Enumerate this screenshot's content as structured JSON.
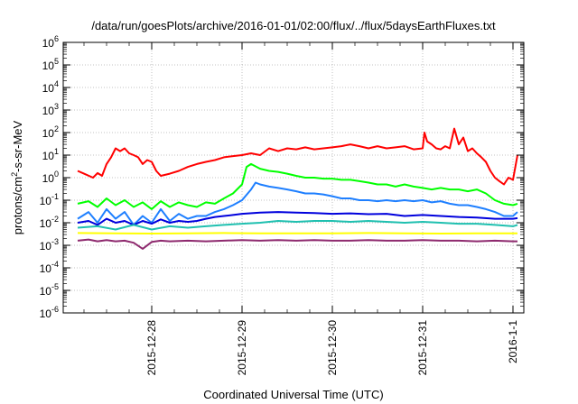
{
  "chart_data": {
    "type": "line",
    "title": "/data/run/goesPlots/archive/2016-01-01/02:00/flux/../flux/5daysEarthFluxes.txt",
    "xlabel": "Coordinated Universal Time (UTC)",
    "ylabel": {
      "base": "protons/cm",
      "sup": "2",
      "rest": "-s-sr-MeV"
    },
    "yscale": "log",
    "ylim": [
      1e-06,
      1000000.0
    ],
    "xlim_days": [
      -2.8,
      1.05
    ],
    "grid": true,
    "legend": "none",
    "x_ticks": [
      {
        "label": "2015-12-28",
        "day": -2.0
      },
      {
        "label": "2015-12-29",
        "day": -1.0
      },
      {
        "label": "2015-12-30",
        "day": 0.0
      },
      {
        "label": "2015-12-31",
        "day": 1.0
      },
      {
        "label": "2016-1-1",
        "day": 2.0
      }
    ],
    "y_ticks": [
      {
        "exp": 6,
        "label_base": "10",
        "label_sup": "6"
      },
      {
        "exp": 5,
        "label_base": "10",
        "label_sup": "5"
      },
      {
        "exp": 4,
        "label_base": "10",
        "label_sup": "4"
      },
      {
        "exp": 3,
        "label_base": "10",
        "label_sup": "3"
      },
      {
        "exp": 2,
        "label_base": "10",
        "label_sup": "2"
      },
      {
        "exp": 1,
        "label_base": "10",
        "label_sup": "1"
      },
      {
        "exp": 0,
        "label_base": "10",
        "label_sup": "0"
      },
      {
        "exp": -1,
        "label_base": "10",
        "label_sup": "-1"
      },
      {
        "exp": -2,
        "label_base": "10",
        "label_sup": "-2"
      },
      {
        "exp": -3,
        "label_base": "10",
        "label_sup": "-3"
      },
      {
        "exp": -4,
        "label_base": "10",
        "label_sup": "-4"
      },
      {
        "exp": -5,
        "label_base": "10",
        "label_sup": "-5"
      },
      {
        "exp": -6,
        "label_base": "10",
        "label_sup": "-6"
      }
    ],
    "series": [
      {
        "color": "#ff0000",
        "x": [
          -2.82,
          -2.75,
          -2.65,
          -2.6,
          -2.55,
          -2.5,
          -2.45,
          -2.4,
          -2.35,
          -2.3,
          -2.25,
          -2.2,
          -2.15,
          -2.1,
          -2.05,
          -2.0,
          -1.95,
          -1.9,
          -1.8,
          -1.7,
          -1.6,
          -1.5,
          -1.4,
          -1.3,
          -1.2,
          -1.1,
          -1.0,
          -0.9,
          -0.8,
          -0.7,
          -0.6,
          -0.5,
          -0.4,
          -0.3,
          -0.2,
          -0.1,
          0.0,
          0.1,
          0.2,
          0.3,
          0.4,
          0.5,
          0.6,
          0.7,
          0.8,
          0.9,
          1.0,
          1.02,
          1.05,
          1.1,
          1.15,
          1.2,
          1.25,
          1.3,
          1.35,
          1.4,
          1.45,
          1.5,
          1.55,
          1.6,
          1.65,
          1.7,
          1.75,
          1.8,
          1.85,
          1.9,
          1.95,
          2.0,
          2.05
        ],
        "values": [
          2,
          1.5,
          1,
          1.6,
          1.2,
          4,
          8,
          20,
          15,
          20,
          12,
          10,
          8,
          4,
          6,
          5,
          2,
          1.2,
          1.5,
          2,
          3,
          4,
          5,
          6,
          8,
          9,
          10,
          12,
          10,
          20,
          15,
          20,
          18,
          22,
          18,
          20,
          22,
          25,
          30,
          25,
          20,
          25,
          20,
          22,
          25,
          18,
          20,
          100,
          40,
          30,
          20,
          18,
          25,
          20,
          150,
          30,
          60,
          15,
          20,
          12,
          8,
          5,
          2,
          1,
          0.7,
          0.5,
          1,
          0.8,
          10
        ]
      },
      {
        "color": "#00ff00",
        "x": [
          -2.82,
          -2.7,
          -2.6,
          -2.5,
          -2.4,
          -2.3,
          -2.2,
          -2.1,
          -2.0,
          -1.9,
          -1.8,
          -1.7,
          -1.6,
          -1.5,
          -1.4,
          -1.3,
          -1.2,
          -1.1,
          -1.0,
          -0.95,
          -0.9,
          -0.8,
          -0.7,
          -0.6,
          -0.5,
          -0.4,
          -0.3,
          -0.2,
          -0.1,
          0.0,
          0.1,
          0.2,
          0.3,
          0.4,
          0.5,
          0.6,
          0.7,
          0.8,
          0.9,
          1.0,
          1.1,
          1.2,
          1.3,
          1.4,
          1.5,
          1.6,
          1.7,
          1.8,
          1.9,
          2.0,
          2.05
        ],
        "values": [
          0.07,
          0.09,
          0.05,
          0.12,
          0.06,
          0.1,
          0.05,
          0.08,
          0.04,
          0.09,
          0.05,
          0.08,
          0.06,
          0.05,
          0.08,
          0.07,
          0.12,
          0.2,
          0.5,
          3,
          4,
          2.5,
          2,
          1.8,
          1.5,
          1.2,
          1.0,
          1.0,
          0.9,
          0.9,
          0.8,
          0.8,
          0.7,
          0.6,
          0.5,
          0.5,
          0.4,
          0.5,
          0.4,
          0.35,
          0.3,
          0.35,
          0.3,
          0.3,
          0.25,
          0.3,
          0.2,
          0.1,
          0.07,
          0.06,
          0.07
        ]
      },
      {
        "color": "#1e7fff",
        "x": [
          -2.82,
          -2.7,
          -2.6,
          -2.5,
          -2.4,
          -2.3,
          -2.2,
          -2.1,
          -2.0,
          -1.9,
          -1.8,
          -1.7,
          -1.6,
          -1.5,
          -1.4,
          -1.3,
          -1.2,
          -1.1,
          -1.0,
          -0.9,
          -0.85,
          -0.8,
          -0.7,
          -0.6,
          -0.5,
          -0.4,
          -0.3,
          -0.2,
          -0.1,
          0.0,
          0.1,
          0.2,
          0.3,
          0.4,
          0.5,
          0.6,
          0.7,
          0.8,
          0.9,
          1.0,
          1.1,
          1.2,
          1.3,
          1.4,
          1.5,
          1.6,
          1.7,
          1.8,
          1.9,
          2.0,
          2.05
        ],
        "values": [
          0.015,
          0.03,
          0.01,
          0.04,
          0.015,
          0.03,
          0.008,
          0.02,
          0.01,
          0.04,
          0.012,
          0.025,
          0.015,
          0.02,
          0.02,
          0.03,
          0.04,
          0.06,
          0.1,
          0.3,
          0.6,
          0.5,
          0.4,
          0.35,
          0.3,
          0.25,
          0.2,
          0.2,
          0.18,
          0.15,
          0.12,
          0.12,
          0.1,
          0.1,
          0.09,
          0.1,
          0.09,
          0.1,
          0.09,
          0.1,
          0.08,
          0.09,
          0.07,
          0.06,
          0.06,
          0.05,
          0.04,
          0.03,
          0.02,
          0.02,
          0.03
        ]
      },
      {
        "color": "#0000dd",
        "x": [
          -2.82,
          -2.7,
          -2.6,
          -2.5,
          -2.4,
          -2.3,
          -2.2,
          -2.1,
          -2.0,
          -1.9,
          -1.8,
          -1.7,
          -1.6,
          -1.5,
          -1.4,
          -1.3,
          -1.2,
          -1.1,
          -1.0,
          -0.8,
          -0.6,
          -0.4,
          -0.2,
          0.0,
          0.2,
          0.4,
          0.6,
          0.8,
          1.0,
          1.2,
          1.4,
          1.6,
          1.8,
          2.0,
          2.05
        ],
        "values": [
          0.01,
          0.012,
          0.008,
          0.015,
          0.01,
          0.012,
          0.008,
          0.012,
          0.009,
          0.014,
          0.01,
          0.012,
          0.011,
          0.012,
          0.015,
          0.018,
          0.02,
          0.022,
          0.025,
          0.028,
          0.03,
          0.028,
          0.027,
          0.025,
          0.026,
          0.024,
          0.025,
          0.02,
          0.022,
          0.02,
          0.018,
          0.017,
          0.015,
          0.015,
          0.016
        ]
      },
      {
        "color": "#20c0b0",
        "x": [
          -2.82,
          -2.6,
          -2.4,
          -2.2,
          -2.0,
          -1.8,
          -1.6,
          -1.4,
          -1.2,
          -1.0,
          -0.8,
          -0.6,
          -0.4,
          -0.2,
          0.0,
          0.2,
          0.4,
          0.6,
          0.8,
          1.0,
          1.2,
          1.4,
          1.6,
          1.8,
          2.0,
          2.05
        ],
        "values": [
          0.006,
          0.007,
          0.005,
          0.008,
          0.005,
          0.007,
          0.006,
          0.007,
          0.008,
          0.009,
          0.01,
          0.012,
          0.011,
          0.012,
          0.012,
          0.011,
          0.012,
          0.011,
          0.01,
          0.011,
          0.01,
          0.009,
          0.009,
          0.008,
          0.007,
          0.008
        ]
      },
      {
        "color": "#ffff00",
        "x": [
          -2.82,
          -2.4,
          -2.0,
          -1.6,
          -1.2,
          -0.8,
          -0.4,
          0.0,
          0.4,
          0.8,
          1.2,
          1.6,
          2.0,
          2.05
        ],
        "values": [
          0.0035,
          0.0034,
          0.0033,
          0.0034,
          0.0035,
          0.0034,
          0.0034,
          0.0034,
          0.0035,
          0.0034,
          0.0033,
          0.0034,
          0.0034,
          0.0034
        ]
      },
      {
        "color": "#8e2a6e",
        "x": [
          -2.82,
          -2.7,
          -2.6,
          -2.5,
          -2.4,
          -2.3,
          -2.2,
          -2.1,
          -2.0,
          -1.9,
          -1.8,
          -1.6,
          -1.4,
          -1.2,
          -1.0,
          -0.8,
          -0.6,
          -0.4,
          -0.2,
          0.0,
          0.2,
          0.4,
          0.6,
          0.8,
          1.0,
          1.2,
          1.4,
          1.6,
          1.8,
          2.0,
          2.05
        ],
        "values": [
          0.0016,
          0.0018,
          0.0015,
          0.0017,
          0.0015,
          0.0016,
          0.0013,
          0.0007,
          0.0014,
          0.0016,
          0.0015,
          0.0016,
          0.0015,
          0.0016,
          0.0017,
          0.0016,
          0.0017,
          0.0016,
          0.0017,
          0.0016,
          0.0016,
          0.0017,
          0.0016,
          0.0016,
          0.0017,
          0.0016,
          0.0016,
          0.0015,
          0.0016,
          0.0015,
          0.0015
        ]
      }
    ]
  }
}
